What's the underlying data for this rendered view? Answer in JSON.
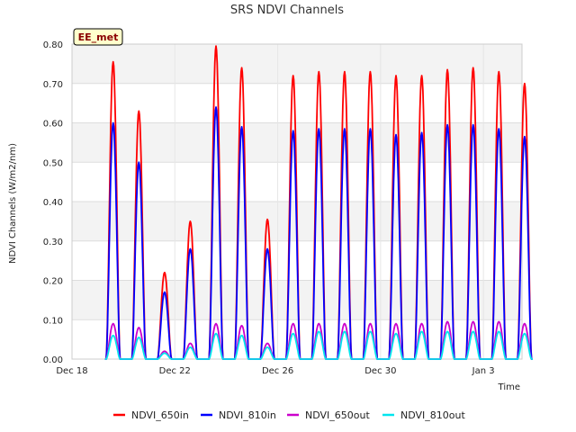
{
  "chart_data": {
    "type": "line",
    "title": "SRS NDVI Channels",
    "xlabel": "Time",
    "ylabel": "NDVI Channels (W/m2/nm)",
    "badge": "EE_met",
    "x_axis_units": "days",
    "xlim": [
      "2024-12-18",
      "2025-01-04"
    ],
    "ylim": [
      0.0,
      0.8
    ],
    "y_ticks": [
      {
        "value": 0.0,
        "label": "0.00"
      },
      {
        "value": 0.1,
        "label": "0.10"
      },
      {
        "value": 0.2,
        "label": "0.20"
      },
      {
        "value": 0.3,
        "label": "0.30"
      },
      {
        "value": 0.4,
        "label": "0.40"
      },
      {
        "value": 0.5,
        "label": "0.50"
      },
      {
        "value": 0.6,
        "label": "0.60"
      },
      {
        "value": 0.7,
        "label": "0.70"
      },
      {
        "value": 0.8,
        "label": "0.80"
      }
    ],
    "x_ticks": [
      {
        "date": "2024-12-18",
        "label": "Dec 18"
      },
      {
        "date": "2024-12-22",
        "label": "Dec 22"
      },
      {
        "date": "2024-12-26",
        "label": "Dec 26"
      },
      {
        "date": "2024-12-30",
        "label": "Dec 30"
      },
      {
        "date": "2025-01-03",
        "label": "Jan 3"
      }
    ],
    "grid": true,
    "legend_position": "bottom",
    "daily_peak_dates": [
      "2024-12-19",
      "2024-12-20",
      "2024-12-21",
      "2024-12-22",
      "2024-12-23",
      "2024-12-24",
      "2024-12-25",
      "2024-12-26",
      "2024-12-27",
      "2024-12-28",
      "2024-12-29",
      "2024-12-30",
      "2024-12-31",
      "2025-01-01",
      "2025-01-02",
      "2025-01-03",
      "2025-01-04"
    ],
    "series": [
      {
        "name": "NDVI_650in",
        "color": "#ff0000",
        "daily_peaks": [
          0.755,
          0.63,
          0.22,
          0.35,
          0.795,
          0.74,
          0.355,
          0.72,
          0.73,
          0.73,
          0.73,
          0.72,
          0.72,
          0.735,
          0.74,
          0.73,
          0.7
        ]
      },
      {
        "name": "NDVI_810in",
        "color": "#0000ff",
        "daily_peaks": [
          0.6,
          0.5,
          0.17,
          0.28,
          0.64,
          0.59,
          0.28,
          0.58,
          0.585,
          0.585,
          0.585,
          0.57,
          0.575,
          0.595,
          0.595,
          0.585,
          0.565
        ]
      },
      {
        "name": "NDVI_650out",
        "color": "#cc00cc",
        "daily_peaks": [
          0.09,
          0.08,
          0.02,
          0.04,
          0.09,
          0.085,
          0.04,
          0.09,
          0.09,
          0.09,
          0.09,
          0.09,
          0.09,
          0.095,
          0.095,
          0.095,
          0.09
        ]
      },
      {
        "name": "NDVI_810out",
        "color": "#00e5ee",
        "daily_peaks": [
          0.06,
          0.055,
          0.015,
          0.03,
          0.065,
          0.06,
          0.03,
          0.065,
          0.07,
          0.07,
          0.07,
          0.065,
          0.07,
          0.07,
          0.07,
          0.07,
          0.065
        ]
      }
    ]
  }
}
